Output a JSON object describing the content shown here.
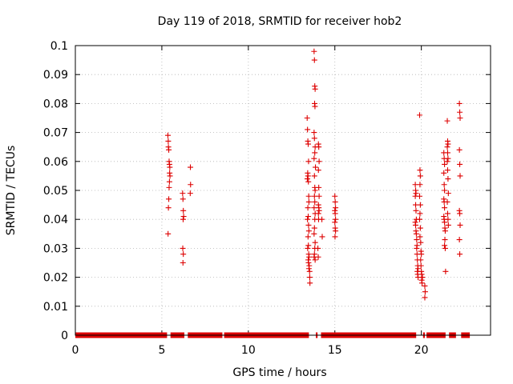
{
  "chart_data": {
    "type": "scatter",
    "title": "Day 119 of 2018, SRMTID for receiver hob2",
    "xlabel": "GPS time / hours",
    "ylabel": "SRMTID / TECUs",
    "xlim": [
      0,
      24
    ],
    "ylim": [
      0,
      0.1
    ],
    "x_ticks": [
      0,
      5,
      10,
      15,
      20
    ],
    "x_tick_labels": [
      "0",
      "5",
      "10",
      "15",
      "20"
    ],
    "y_ticks": [
      0,
      0.01,
      0.02,
      0.03,
      0.04,
      0.05,
      0.06,
      0.07,
      0.08,
      0.09,
      0.1
    ],
    "y_tick_labels": [
      "0",
      "0.01",
      "0.02",
      "0.03",
      "0.04",
      "0.05",
      "0.06",
      "0.07",
      "0.08",
      "0.09",
      "0.1"
    ],
    "grid": true,
    "marker": "+",
    "color": "#dd0000",
    "zero_baseline_segments": [
      [
        0.0,
        5.3
      ],
      [
        5.5,
        6.3
      ],
      [
        6.5,
        8.5
      ],
      [
        8.6,
        13.5
      ],
      [
        13.9,
        14.0
      ],
      [
        14.2,
        19.7
      ],
      [
        20.1,
        20.2
      ],
      [
        20.3,
        21.4
      ],
      [
        21.6,
        22.0
      ],
      [
        22.3,
        22.8
      ]
    ],
    "series": [
      {
        "name": "SRMTID",
        "points": [
          [
            5.35,
            0.069
          ],
          [
            5.37,
            0.067
          ],
          [
            5.38,
            0.065
          ],
          [
            5.4,
            0.064
          ],
          [
            5.42,
            0.06
          ],
          [
            5.44,
            0.059
          ],
          [
            5.46,
            0.058
          ],
          [
            5.45,
            0.056
          ],
          [
            5.47,
            0.055
          ],
          [
            5.44,
            0.053
          ],
          [
            5.42,
            0.051
          ],
          [
            5.4,
            0.047
          ],
          [
            5.38,
            0.044
          ],
          [
            5.36,
            0.035
          ],
          [
            6.2,
            0.049
          ],
          [
            6.22,
            0.047
          ],
          [
            6.24,
            0.043
          ],
          [
            6.26,
            0.041
          ],
          [
            6.23,
            0.04
          ],
          [
            6.21,
            0.03
          ],
          [
            6.24,
            0.028
          ],
          [
            6.22,
            0.025
          ],
          [
            6.65,
            0.058
          ],
          [
            6.66,
            0.052
          ],
          [
            6.64,
            0.049
          ],
          [
            13.4,
            0.075
          ],
          [
            13.42,
            0.071
          ],
          [
            13.44,
            0.067
          ],
          [
            13.46,
            0.066
          ],
          [
            13.48,
            0.06
          ],
          [
            13.43,
            0.056
          ],
          [
            13.45,
            0.055
          ],
          [
            13.41,
            0.054
          ],
          [
            13.47,
            0.053
          ],
          [
            13.49,
            0.048
          ],
          [
            13.5,
            0.046
          ],
          [
            13.44,
            0.044
          ],
          [
            13.46,
            0.041
          ],
          [
            13.42,
            0.04
          ],
          [
            13.48,
            0.038
          ],
          [
            13.5,
            0.036
          ],
          [
            13.45,
            0.034
          ],
          [
            13.47,
            0.031
          ],
          [
            13.43,
            0.03
          ],
          [
            13.49,
            0.028
          ],
          [
            13.51,
            0.027
          ],
          [
            13.46,
            0.026
          ],
          [
            13.48,
            0.025
          ],
          [
            13.52,
            0.024
          ],
          [
            13.5,
            0.023
          ],
          [
            13.54,
            0.022
          ],
          [
            13.55,
            0.02
          ],
          [
            13.56,
            0.018
          ],
          [
            13.8,
            0.098
          ],
          [
            13.82,
            0.095
          ],
          [
            13.84,
            0.086
          ],
          [
            13.86,
            0.085
          ],
          [
            13.83,
            0.08
          ],
          [
            13.85,
            0.079
          ],
          [
            13.8,
            0.07
          ],
          [
            13.82,
            0.068
          ],
          [
            13.86,
            0.065
          ],
          [
            13.84,
            0.063
          ],
          [
            13.8,
            0.061
          ],
          [
            13.88,
            0.058
          ],
          [
            13.82,
            0.055
          ],
          [
            13.84,
            0.051
          ],
          [
            13.86,
            0.05
          ],
          [
            13.82,
            0.048
          ],
          [
            13.84,
            0.046
          ],
          [
            13.8,
            0.044
          ],
          [
            13.86,
            0.042
          ],
          [
            13.84,
            0.04
          ],
          [
            13.82,
            0.037
          ],
          [
            13.8,
            0.035
          ],
          [
            13.86,
            0.032
          ],
          [
            13.84,
            0.03
          ],
          [
            13.82,
            0.028
          ],
          [
            13.8,
            0.027
          ],
          [
            13.86,
            0.026
          ],
          [
            14.05,
            0.066
          ],
          [
            14.07,
            0.065
          ],
          [
            14.09,
            0.06
          ],
          [
            14.05,
            0.057
          ],
          [
            14.07,
            0.051
          ],
          [
            14.09,
            0.048
          ],
          [
            14.05,
            0.045
          ],
          [
            14.07,
            0.044
          ],
          [
            14.09,
            0.043
          ],
          [
            14.05,
            0.042
          ],
          [
            14.06,
            0.04
          ],
          [
            14.02,
            0.03
          ],
          [
            14.04,
            0.027
          ],
          [
            14.25,
            0.04
          ],
          [
            14.27,
            0.034
          ],
          [
            15.0,
            0.048
          ],
          [
            15.02,
            0.046
          ],
          [
            15.04,
            0.044
          ],
          [
            15.0,
            0.043
          ],
          [
            15.02,
            0.042
          ],
          [
            15.04,
            0.04
          ],
          [
            15.0,
            0.039
          ],
          [
            15.02,
            0.037
          ],
          [
            15.04,
            0.036
          ],
          [
            15.01,
            0.034
          ],
          [
            19.65,
            0.052
          ],
          [
            19.67,
            0.05
          ],
          [
            19.69,
            0.049
          ],
          [
            19.65,
            0.048
          ],
          [
            19.67,
            0.045
          ],
          [
            19.69,
            0.043
          ],
          [
            19.71,
            0.04
          ],
          [
            19.65,
            0.039
          ],
          [
            19.67,
            0.038
          ],
          [
            19.69,
            0.036
          ],
          [
            19.71,
            0.035
          ],
          [
            19.73,
            0.033
          ],
          [
            19.75,
            0.031
          ],
          [
            19.73,
            0.03
          ],
          [
            19.75,
            0.028
          ],
          [
            19.77,
            0.026
          ],
          [
            19.79,
            0.024
          ],
          [
            19.81,
            0.023
          ],
          [
            19.77,
            0.022
          ],
          [
            19.79,
            0.021
          ],
          [
            19.81,
            0.02
          ],
          [
            19.9,
            0.076
          ],
          [
            19.92,
            0.057
          ],
          [
            19.94,
            0.055
          ],
          [
            19.92,
            0.052
          ],
          [
            19.9,
            0.048
          ],
          [
            19.94,
            0.045
          ],
          [
            19.92,
            0.042
          ],
          [
            19.9,
            0.04
          ],
          [
            19.94,
            0.037
          ],
          [
            19.92,
            0.034
          ],
          [
            19.96,
            0.032
          ],
          [
            19.98,
            0.029
          ],
          [
            20.0,
            0.028
          ],
          [
            19.96,
            0.026
          ],
          [
            19.98,
            0.024
          ],
          [
            20.0,
            0.022
          ],
          [
            20.02,
            0.021
          ],
          [
            20.04,
            0.02
          ],
          [
            20.06,
            0.02
          ],
          [
            20.02,
            0.019
          ],
          [
            20.04,
            0.018
          ],
          [
            20.2,
            0.017
          ],
          [
            20.22,
            0.015
          ],
          [
            20.2,
            0.013
          ],
          [
            21.3,
            0.063
          ],
          [
            21.32,
            0.061
          ],
          [
            21.34,
            0.059
          ],
          [
            21.3,
            0.056
          ],
          [
            21.32,
            0.052
          ],
          [
            21.34,
            0.05
          ],
          [
            21.3,
            0.047
          ],
          [
            21.32,
            0.046
          ],
          [
            21.34,
            0.044
          ],
          [
            21.3,
            0.041
          ],
          [
            21.32,
            0.04
          ],
          [
            21.34,
            0.039
          ],
          [
            21.36,
            0.037
          ],
          [
            21.38,
            0.036
          ],
          [
            21.36,
            0.033
          ],
          [
            21.34,
            0.031
          ],
          [
            21.38,
            0.03
          ],
          [
            21.4,
            0.022
          ],
          [
            21.5,
            0.074
          ],
          [
            21.52,
            0.067
          ],
          [
            21.54,
            0.066
          ],
          [
            21.5,
            0.065
          ],
          [
            21.52,
            0.063
          ],
          [
            21.54,
            0.061
          ],
          [
            21.5,
            0.06
          ],
          [
            21.52,
            0.057
          ],
          [
            21.54,
            0.054
          ],
          [
            21.56,
            0.049
          ],
          [
            21.5,
            0.046
          ],
          [
            21.52,
            0.042
          ],
          [
            21.54,
            0.04
          ],
          [
            21.56,
            0.038
          ],
          [
            22.2,
            0.08
          ],
          [
            22.22,
            0.077
          ],
          [
            22.24,
            0.075
          ],
          [
            22.2,
            0.064
          ],
          [
            22.22,
            0.059
          ],
          [
            22.24,
            0.055
          ],
          [
            22.2,
            0.043
          ],
          [
            22.22,
            0.042
          ],
          [
            22.24,
            0.038
          ],
          [
            22.2,
            0.033
          ],
          [
            22.22,
            0.028
          ]
        ]
      }
    ]
  }
}
